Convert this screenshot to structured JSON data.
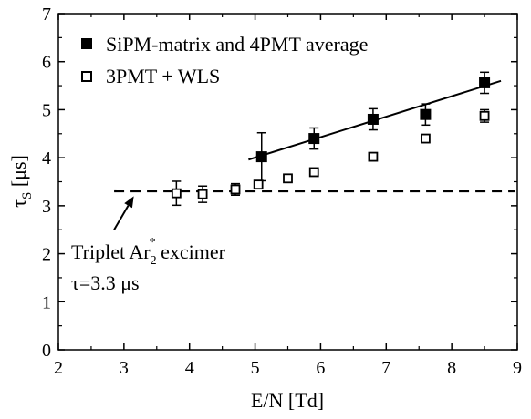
{
  "chart_data": {
    "type": "scatter",
    "xlabel": "E/N [Td]",
    "ylabel": "τ",
    "ylabel_sub": "S",
    "ylabel_unit": " [μs]",
    "xlim": [
      2,
      9
    ],
    "ylim": [
      0,
      7
    ],
    "xticks": [
      "2",
      "3",
      "4",
      "5",
      "6",
      "7",
      "8",
      "9"
    ],
    "yticks": [
      "0",
      "1",
      "2",
      "3",
      "4",
      "5",
      "6",
      "7"
    ],
    "legend_position": "top-left",
    "series": [
      {
        "name": "SiPM-matrix and 4PMT average",
        "marker": "filled-square",
        "color": "#000000",
        "points": [
          {
            "x": 5.1,
            "y": 4.02,
            "err": 0.5
          },
          {
            "x": 5.9,
            "y": 4.4,
            "err": 0.22
          },
          {
            "x": 6.8,
            "y": 4.8,
            "err": 0.22
          },
          {
            "x": 7.6,
            "y": 4.9,
            "err": 0.22
          },
          {
            "x": 8.5,
            "y": 5.56,
            "err": 0.22
          }
        ]
      },
      {
        "name": "3PMT + WLS",
        "marker": "open-square",
        "color": "#000000",
        "points": [
          {
            "x": 3.8,
            "y": 3.26,
            "err": 0.25
          },
          {
            "x": 4.2,
            "y": 3.24,
            "err": 0.17
          },
          {
            "x": 4.7,
            "y": 3.34,
            "err": 0.12
          },
          {
            "x": 5.05,
            "y": 3.44,
            "err": 0.08
          },
          {
            "x": 5.5,
            "y": 3.57,
            "err": 0.0
          },
          {
            "x": 5.9,
            "y": 3.7,
            "err": 0.0
          },
          {
            "x": 6.8,
            "y": 4.02,
            "err": 0.0
          },
          {
            "x": 7.6,
            "y": 4.4,
            "err": 0.0
          },
          {
            "x": 8.5,
            "y": 4.87,
            "err": 0.13
          }
        ]
      }
    ],
    "fit_line": {
      "x": [
        4.9,
        8.75
      ],
      "y": [
        3.96,
        5.6
      ]
    },
    "reference_line": {
      "y": 3.3,
      "x": [
        2.85,
        9
      ],
      "style": "dashed"
    },
    "annotation": {
      "line1_prefix": "Triplet Ar",
      "line1_sub": "2",
      "line1_sup": "*",
      "line1_suffix": " excimer",
      "line2": "τ=3.3 μs",
      "arrow_from": {
        "x": 2.85,
        "y": 2.5
      },
      "arrow_to": {
        "x": 3.15,
        "y": 3.2
      }
    }
  }
}
